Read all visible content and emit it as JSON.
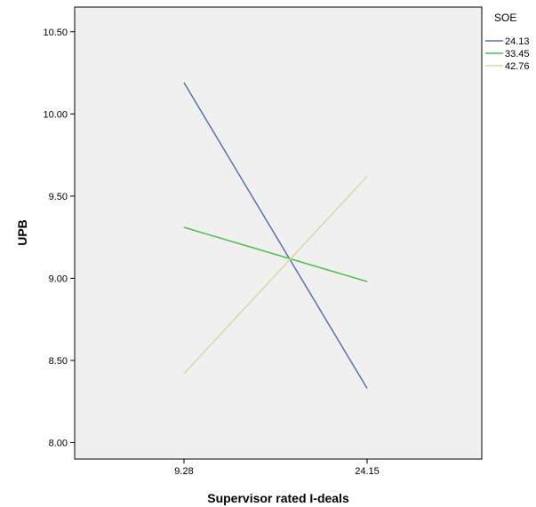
{
  "chart_data": {
    "type": "line",
    "title": "",
    "xlabel": "Supervisor rated I-deals",
    "ylabel": "UPB",
    "categories": [
      "9.28",
      "24.15"
    ],
    "ylim": [
      7.9,
      10.65
    ],
    "yticks": [
      "8.00",
      "8.50",
      "9.00",
      "9.50",
      "10.00",
      "10.50"
    ],
    "grid": false,
    "legend": {
      "title": "SOE",
      "placement": "right-top"
    },
    "series": [
      {
        "name": "24.13",
        "color": "#5a6fb5",
        "values": [
          10.19,
          8.33
        ]
      },
      {
        "name": "33.45",
        "color": "#4cbf4c",
        "values": [
          9.31,
          8.98
        ]
      },
      {
        "name": "42.76",
        "color": "#d8d8a8",
        "values": [
          8.42,
          9.62
        ]
      }
    ]
  }
}
